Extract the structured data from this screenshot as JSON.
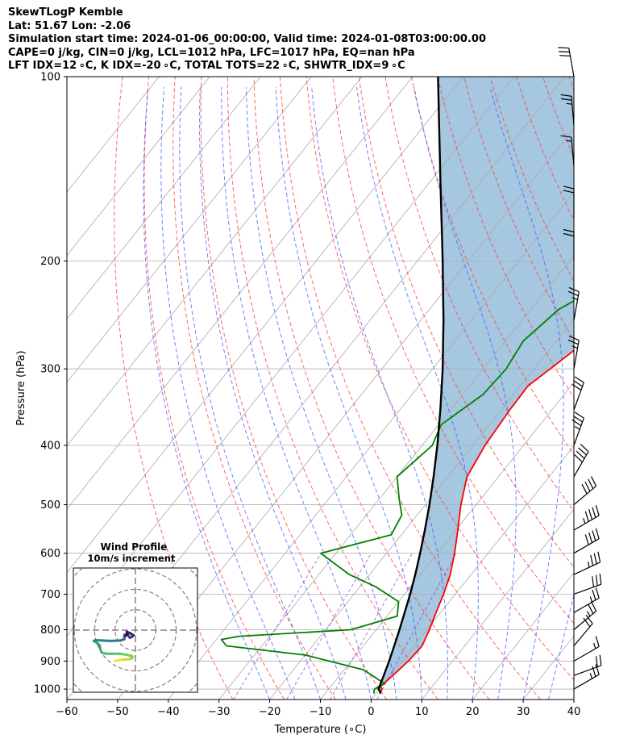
{
  "header": {
    "line1": "SkewTLogP Kemble",
    "line2": "Lat: 51.67   Lon: -2.06",
    "line3": "Simulation start time: 2024-01-06_00:00:00, Valid time: 2024-01-08T03:00:00.00",
    "line4": "CAPE=0 j/kg, CIN=0 j/kg, LCL=1012 hPa, LFC=1017 hPa, EQ=nan hPa",
    "line5": "LFT IDX=12 ∘C, K IDX=-20 ∘C, TOTAL TOTS=22 ∘C, SHWTR_IDX=9 ∘C"
  },
  "chart_data": {
    "type": "line",
    "subtype": "skew-T log-P diagram",
    "xlabel": "Temperature (∘C)",
    "ylabel": "Pressure (hPa)",
    "xlim": [
      -60,
      40
    ],
    "ylim": [
      1040,
      100
    ],
    "x_ticks": [
      -60,
      -50,
      -40,
      -30,
      -20,
      -10,
      0,
      10,
      20,
      30,
      40
    ],
    "y_ticks": [
      100,
      200,
      300,
      400,
      500,
      600,
      700,
      800,
      900,
      1000
    ],
    "y_scale": "log",
    "grid": true,
    "colors": {
      "temperature": "#ff0000",
      "dewpoint": "#008000",
      "parcel": "#000000",
      "shading": "#a0c4de",
      "dry_adiabat": "#ff4040",
      "moist_adiabat": "#3a5cff",
      "mixing_ratio": "#9933cc",
      "isotherm": "#aaaaaa",
      "grid": "#b0b0b0",
      "hodo_ring": "#808080"
    },
    "series": [
      {
        "key": "temperature",
        "points": [
          [
            1017,
            0.8
          ],
          [
            1000,
            0.5
          ],
          [
            990,
            -0.2
          ],
          [
            950,
            0.5
          ],
          [
            900,
            1.3
          ],
          [
            850,
            1.6
          ],
          [
            800,
            0.5
          ],
          [
            750,
            -0.9
          ],
          [
            700,
            -2.3
          ],
          [
            650,
            -4.1
          ],
          [
            600,
            -6.6
          ],
          [
            550,
            -9.6
          ],
          [
            500,
            -13.0
          ],
          [
            450,
            -16.2
          ],
          [
            400,
            -17.6
          ],
          [
            350,
            -18.3
          ],
          [
            320,
            -18.5
          ],
          [
            300,
            -16.8
          ],
          [
            270,
            -14.1
          ],
          [
            250,
            -12.2
          ],
          [
            235,
            -10.2
          ],
          [
            200,
            -10.4
          ],
          [
            190,
            -8.8
          ],
          [
            180,
            -6.6
          ],
          [
            170,
            -4.3
          ],
          [
            160,
            -2.1
          ],
          [
            150,
            -0.6
          ],
          [
            140,
            0.6
          ],
          [
            130,
            2.0
          ],
          [
            120,
            4.5
          ],
          [
            110,
            6.8
          ],
          [
            100,
            10.1
          ]
        ]
      },
      {
        "key": "dewpoint",
        "points": [
          [
            1017,
            -0.4
          ],
          [
            1000,
            -1.0
          ],
          [
            980,
            0.2
          ],
          [
            930,
            -6.2
          ],
          [
            880,
            -20.0
          ],
          [
            850,
            -37.0
          ],
          [
            830,
            -39.0
          ],
          [
            820,
            -36.0
          ],
          [
            800,
            -15.0
          ],
          [
            760,
            -8.0
          ],
          [
            720,
            -10.0
          ],
          [
            680,
            -17.0
          ],
          [
            650,
            -24.0
          ],
          [
            600,
            -33.0
          ],
          [
            560,
            -22.0
          ],
          [
            520,
            -23.0
          ],
          [
            490,
            -26.0
          ],
          [
            450,
            -30.0
          ],
          [
            400,
            -28.0
          ],
          [
            370,
            -29.5
          ],
          [
            330,
            -26.0
          ],
          [
            300,
            -25.5
          ],
          [
            270,
            -26.5
          ],
          [
            240,
            -24.5
          ],
          [
            220,
            -20.0
          ],
          [
            205,
            -15.5
          ],
          [
            190,
            -13.3
          ],
          [
            180,
            -13.0
          ],
          [
            170,
            -12.5
          ],
          [
            160,
            -8.5
          ],
          [
            150,
            -5.5
          ],
          [
            140,
            -2.0
          ],
          [
            130,
            0.2
          ],
          [
            120,
            2.5
          ],
          [
            110,
            4.5
          ],
          [
            100,
            6.5
          ]
        ]
      },
      {
        "key": "parcel",
        "points": [
          [
            1017,
            0.8
          ],
          [
            1012,
            0.7
          ],
          [
            1000,
            -0.2
          ],
          [
            950,
            -1.3
          ],
          [
            900,
            -2.5
          ],
          [
            850,
            -3.9
          ],
          [
            800,
            -5.4
          ],
          [
            750,
            -7.1
          ],
          [
            700,
            -8.9
          ],
          [
            650,
            -11.0
          ],
          [
            600,
            -13.4
          ],
          [
            550,
            -16.1
          ],
          [
            500,
            -19.2
          ],
          [
            450,
            -22.8
          ],
          [
            400,
            -27.0
          ],
          [
            350,
            -32.0
          ],
          [
            300,
            -38.0
          ],
          [
            250,
            -45.5
          ],
          [
            200,
            -55.0
          ],
          [
            150,
            -67.5
          ],
          [
            100,
            -85.0
          ]
        ]
      }
    ],
    "wind_barbs": {
      "pressures": [
        100,
        120,
        140,
        170,
        200,
        250,
        300,
        350,
        400,
        450,
        500,
        550,
        600,
        650,
        700,
        750,
        800,
        850,
        900,
        950,
        1000
      ],
      "speed_kt": [
        30,
        25,
        15,
        20,
        20,
        25,
        25,
        30,
        35,
        40,
        40,
        45,
        40,
        35,
        30,
        25,
        25,
        20,
        15,
        20,
        25
      ],
      "dir_deg": [
        350,
        355,
        355,
        360,
        360,
        10,
        10,
        20,
        20,
        30,
        50,
        60,
        60,
        65,
        70,
        60,
        50,
        40,
        60,
        70,
        60
      ]
    },
    "hodograph": {
      "title": "Wind Profile",
      "subtitle": "10m/s increment",
      "ring_step_ms": 10,
      "points_uv": [
        [
          -5.9,
          -8.9
        ],
        [
          -4.8,
          -8.7
        ],
        [
          -3.6,
          -8.5
        ],
        [
          -2.6,
          -8.4
        ],
        [
          -1.2,
          -8.3
        ],
        [
          -0.8,
          -7.8
        ],
        [
          -1.0,
          -7.5
        ],
        [
          -2.5,
          -7.1
        ],
        [
          -4.5,
          -6.8
        ],
        [
          -6.5,
          -6.8
        ],
        [
          -8.5,
          -6.8
        ],
        [
          -9.7,
          -6.5
        ],
        [
          -10.1,
          -5.6
        ],
        [
          -10.3,
          -4.4
        ],
        [
          -11.3,
          -3.5
        ],
        [
          -12.0,
          -3.1
        ],
        [
          -11.6,
          -2.9
        ],
        [
          -9.5,
          -3.0
        ],
        [
          -7.3,
          -3.1
        ],
        [
          -4.3,
          -3.0
        ],
        [
          -3.2,
          -2.6
        ],
        [
          -3.2,
          -2.0
        ],
        [
          -3.1,
          -1.3
        ],
        [
          -2.8,
          -1.6
        ],
        [
          -2.3,
          -1.2
        ],
        [
          -1.6,
          -2.2
        ],
        [
          -1.0,
          -1.9
        ],
        [
          -0.5,
          -1.5
        ],
        [
          -1.5,
          -0.9
        ],
        [
          -2.5,
          -0.5
        ],
        [
          -2.4,
          -1.1
        ],
        [
          -2.8,
          -1.6
        ]
      ]
    }
  }
}
